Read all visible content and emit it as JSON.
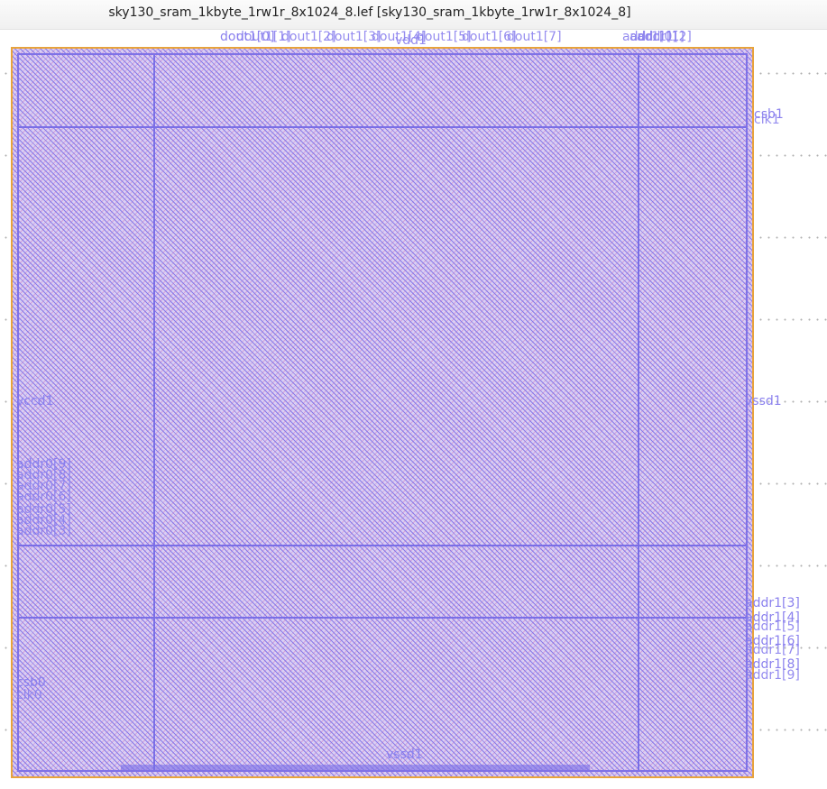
{
  "window": {
    "title": "sky130_sram_1kbyte_1rw1r_8x1024_8.lef [sky130_sram_1kbyte_1rw1r_8x1024_8]"
  },
  "layout_view": {
    "pins_top": [
      "dout1[0]",
      "dout1[1]",
      "dout1[2]",
      "dout1[3]",
      "dout1[4]",
      "dout1[5]",
      "dout1[6]",
      "dout1[7]",
      "vdd1",
      "addr1[0]",
      "addr1[1]",
      "addr1[2]"
    ],
    "pins_right": [
      "csb1",
      "clk1",
      "vssd1",
      "addr1[3]",
      "addr1[4]",
      "addr1[5]",
      "addr1[6]",
      "addr1[7]",
      "addr1[8]",
      "addr1[9]"
    ],
    "pins_left": [
      "vccd1",
      "addr0[9]",
      "addr0[8]",
      "addr0[7]",
      "addr0[6]",
      "addr0[5]",
      "addr0[4]",
      "addr0[3]",
      "csb0",
      "clk0"
    ],
    "pins_bottom_visible": [
      "vssd1"
    ],
    "colors": {
      "boundary": "#e8a33c",
      "metal_hatch_a": "#7a6ee6",
      "metal_hatch_b": "#d296d2",
      "pin_label": "#8a80ee"
    }
  }
}
